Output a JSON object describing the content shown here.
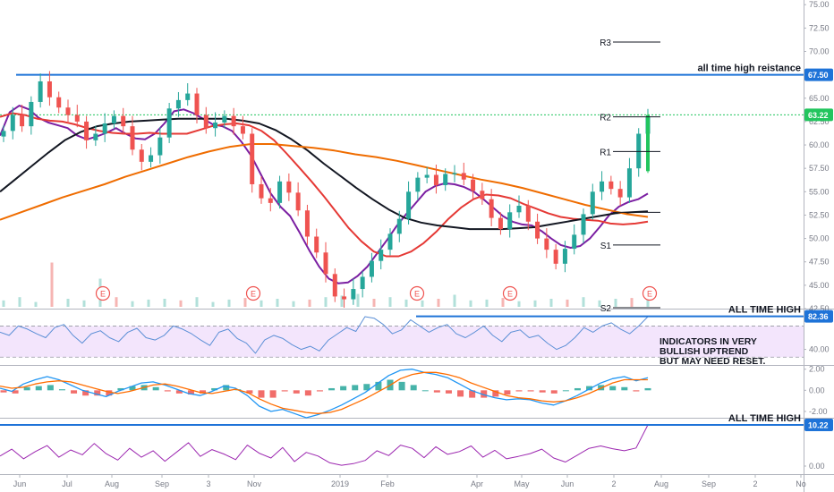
{
  "chart_data": {
    "type": "line",
    "title": "",
    "panes": [
      {
        "name": "price",
        "ylim": [
          42.5,
          75.5
        ],
        "y_ticks": [
          "75.00",
          "72.50",
          "70.00",
          "67.50",
          "65.00",
          "62.50",
          "60.00",
          "57.50",
          "55.00",
          "52.50",
          "50.00",
          "47.50",
          "45.00",
          "42.50"
        ],
        "y_tick_values": [
          75,
          72.5,
          70,
          67.5,
          65,
          62.5,
          60,
          57.5,
          55,
          52.5,
          50,
          47.5,
          45,
          42.5
        ],
        "price_series": [
          61.5,
          63.2,
          62.0,
          64.6,
          66.8,
          65.1,
          64.0,
          63.2,
          62.5,
          60.5,
          61.2,
          62.3,
          63.1,
          62.0,
          59.5,
          58.2,
          58.9,
          60.8,
          63.9,
          64.8,
          65.5,
          63.2,
          61.8,
          62.4,
          63.1,
          62.0,
          61.2,
          55.8,
          54.3,
          53.8,
          56.1,
          54.9,
          53.0,
          50.2,
          48.5,
          46.2,
          43.8,
          43.5,
          44.6,
          45.9,
          47.6,
          48.8,
          50.5,
          52.1,
          55.0,
          56.5,
          56.8,
          55.7,
          56.9,
          57.0,
          56.3,
          55.1,
          54.2,
          52.2,
          51.0,
          52.8,
          53.5,
          51.8,
          50.0,
          48.8,
          47.3,
          48.9,
          50.4,
          52.6,
          55.0,
          56.1,
          55.3,
          54.4,
          57.5,
          61.2,
          63.0
        ],
        "candle_up_color": "#26a69a",
        "candle_down_color": "#ef5350",
        "moving_averages": [
          {
            "color": "#7b1fa2",
            "values": [
              61.0,
              63.5,
              64.2,
              63.8,
              62.9,
              62.4,
              62.1,
              61.8,
              61.0,
              60.6,
              60.9,
              61.3,
              61.8,
              61.2,
              60.7,
              60.6,
              61.2,
              62.3,
              63.6,
              63.8,
              63.4,
              62.8,
              62.2,
              62.0,
              61.5,
              60.3,
              58.8,
              56.8,
              54.8,
              53.4,
              52.4,
              50.6,
              48.7,
              47.0,
              45.7,
              45.2,
              45.3,
              46.0,
              47.0,
              48.4,
              49.8,
              51.3,
              52.6,
              53.8,
              55.0,
              55.6,
              55.9,
              55.8,
              55.5,
              55.0,
              54.2,
              53.3,
              52.4,
              51.8,
              51.5,
              51.4,
              50.8,
              50.0,
              49.3,
              49.0,
              49.2,
              50.0,
              51.2,
              52.5,
              53.4,
              53.9,
              54.2,
              54.8
            ]
          },
          {
            "color": "#e53935",
            "values": [
              63.0,
              63.4,
              63.2,
              62.8,
              62.6,
              62.5,
              62.2,
              61.8,
              61.5,
              61.3,
              61.2,
              61.2,
              61.3,
              61.2,
              61.2,
              61.2,
              61.6,
              62.0,
              62.2,
              62.3,
              62.1,
              61.5,
              60.5,
              59.1,
              57.6,
              56.1,
              54.5,
              52.8,
              51.1,
              49.7,
              48.6,
              48.1,
              48.1,
              48.6,
              49.5,
              50.7,
              52.1,
              53.3,
              54.2,
              54.7,
              54.6,
              54.3,
              53.7,
              53.2,
              52.7,
              52.3,
              52.1,
              52.0,
              51.9,
              51.6,
              51.5,
              51.6,
              51.8
            ]
          },
          {
            "color": "#131722",
            "values": [
              55.0,
              56.4,
              57.8,
              59.2,
              60.5,
              61.4,
              62.0,
              62.3,
              62.5,
              62.6,
              62.7,
              62.8,
              62.8,
              62.8,
              62.8,
              62.6,
              62.3,
              61.6,
              60.6,
              59.4,
              58.0,
              56.7,
              55.4,
              54.2,
              53.1,
              52.2,
              51.7,
              51.4,
              51.2,
              51.0,
              51.0,
              51.0,
              51.1,
              51.2,
              51.5,
              51.8,
              52.1,
              52.4,
              52.7,
              52.8,
              52.9
            ]
          },
          {
            "color": "#ef6c00",
            "values": [
              52.0,
              52.8,
              53.6,
              54.4,
              55.1,
              55.8,
              56.6,
              57.3,
              58.0,
              58.7,
              59.3,
              59.8,
              60.1,
              60.1,
              59.9,
              59.7,
              59.4,
              59.0,
              58.7,
              58.3,
              57.8,
              57.3,
              56.8,
              56.3,
              55.9,
              55.4,
              54.8,
              54.2,
              53.6,
              53.1,
              52.6,
              52.3
            ]
          }
        ],
        "volume_ratio_series": [
          0.08,
          0.12,
          0.06,
          0.55,
          0.1,
          0.08,
          0.35,
          0.12,
          0.07,
          0.09,
          0.1,
          0.08,
          0.12,
          0.06,
          0.09,
          0.11,
          0.08,
          0.1,
          0.07,
          0.09,
          0.12,
          0.14,
          0.16,
          0.1,
          0.12,
          0.09,
          0.08,
          0.1,
          0.15,
          0.08,
          0.09,
          0.11,
          0.07,
          0.08,
          0.1,
          0.09,
          0.12,
          0.08,
          0.1,
          0.11,
          0.09
        ],
        "horizontal_lines": [
          {
            "value": 67.5,
            "color": "#1e73d8",
            "label": "all time high reistance"
          },
          {
            "value": 63.22,
            "color": "#22c55e",
            "style": "dotted"
          }
        ],
        "price_tags": [
          {
            "value": 67.5,
            "text": "67.50",
            "bg": "#1e73d8",
            "fg": "#ffffff"
          },
          {
            "value": 63.22,
            "text": "63.22",
            "bg": "#22c55e",
            "fg": "#ffffff"
          }
        ],
        "pivots": [
          {
            "label": "R3",
            "value": 71.0
          },
          {
            "label": "R2",
            "value": 63.0
          },
          {
            "label": "R1",
            "value": 59.3
          },
          {
            "label": "",
            "value": 52.8
          },
          {
            "label": "S1",
            "value": 49.3
          },
          {
            "label": "S2",
            "value": 42.6
          }
        ],
        "earnings_markers": [
          "E",
          "E",
          "E",
          "E",
          "E"
        ],
        "last_candle": {
          "open": 57.2,
          "high": 63.4,
          "low": 57.0,
          "close": 63.2
        }
      },
      {
        "name": "rsi",
        "ylim": [
          20,
          90
        ],
        "y_ticks": [
          "40.00"
        ],
        "y_tick_values": [
          40
        ],
        "overbought": 70,
        "oversold": 30,
        "band_color": "#f3e5fc",
        "line_color": "#5b8fd6",
        "series": [
          62,
          58,
          70,
          66,
          60,
          55,
          68,
          72,
          58,
          48,
          60,
          64,
          55,
          50,
          62,
          67,
          55,
          52,
          58,
          70,
          66,
          60,
          52,
          45,
          62,
          66,
          54,
          48,
          35,
          52,
          58,
          54,
          46,
          40,
          44,
          38,
          52,
          60,
          68,
          63,
          82,
          80,
          72,
          60,
          65,
          78,
          70,
          62,
          68,
          72,
          60,
          55,
          62,
          70,
          58,
          50,
          62,
          65,
          55,
          58,
          48,
          40,
          45,
          55,
          68,
          62,
          70,
          74,
          66,
          60,
          70,
          82
        ],
        "horizontal_line": {
          "value": 82.36,
          "color": "#1e73d8",
          "label": "ALL TIME HIGH"
        },
        "price_tag": {
          "value": 82.36,
          "text": "82.36",
          "bg": "#1e73d8",
          "fg": "#ffffff"
        },
        "annotation": [
          "INDICATORS IN VERY",
          "BULLISH UPTREND",
          "BUT MAY NEED RESET."
        ]
      },
      {
        "name": "macd",
        "ylim": [
          -2.6,
          2.4
        ],
        "y_ticks": [
          "2.00",
          "0.00",
          "-2.00"
        ],
        "y_tick_values": [
          2,
          0,
          -2
        ],
        "macd_line_color": "#2196f3",
        "signal_line_color": "#ff6d00",
        "hist_up_color": "#26a69a",
        "hist_down_color": "#ef5350",
        "macd": [
          0.2,
          -0.1,
          0.6,
          1.0,
          1.3,
          1.0,
          0.5,
          0.0,
          -0.3,
          -0.6,
          -0.1,
          0.3,
          0.7,
          0.8,
          0.5,
          0.1,
          -0.3,
          -0.5,
          -0.1,
          0.4,
          0.2,
          -0.5,
          -1.5,
          -2.0,
          -1.8,
          -2.2,
          -2.6,
          -2.3,
          -1.9,
          -1.4,
          -0.8,
          -0.2,
          0.6,
          1.4,
          1.9,
          2.0,
          1.7,
          1.5,
          1.2,
          0.6,
          0.0,
          -0.4,
          -0.7,
          -0.9,
          -0.8,
          -0.9,
          -1.2,
          -1.4,
          -1.0,
          -0.5,
          0.1,
          0.7,
          1.1,
          1.3,
          0.9,
          1.2
        ],
        "signal": [
          0.4,
          0.2,
          0.3,
          0.6,
          0.8,
          0.9,
          0.8,
          0.5,
          0.2,
          -0.1,
          -0.3,
          -0.1,
          0.2,
          0.5,
          0.6,
          0.4,
          0.1,
          -0.2,
          -0.3,
          -0.1,
          0.1,
          -0.2,
          -0.8,
          -1.3,
          -1.7,
          -1.9,
          -2.1,
          -2.2,
          -2.1,
          -1.8,
          -1.3,
          -0.8,
          -0.2,
          0.4,
          1.1,
          1.5,
          1.7,
          1.7,
          1.5,
          1.2,
          0.7,
          0.3,
          -0.1,
          -0.5,
          -0.7,
          -0.8,
          -1.0,
          -1.1,
          -1.0,
          -0.7,
          -0.3,
          0.2,
          0.7,
          1.0,
          1.0,
          1.0
        ],
        "histogram": [
          -0.2,
          -0.3,
          0.3,
          0.4,
          0.5,
          0.1,
          -0.3,
          -0.5,
          -0.5,
          -0.5,
          0.2,
          0.4,
          0.5,
          0.3,
          -0.1,
          -0.3,
          -0.4,
          -0.3,
          0.2,
          0.5,
          0.1,
          -0.3,
          -0.7,
          -0.7,
          -0.1,
          -0.3,
          -0.5,
          -0.1,
          0.2,
          0.4,
          0.5,
          0.6,
          0.8,
          1.0,
          0.8,
          0.5,
          0.0,
          -0.2,
          -0.3,
          -0.6,
          -0.7,
          -0.7,
          -0.6,
          -0.4,
          -0.1,
          -0.1,
          -0.2,
          -0.3,
          0.0,
          0.2,
          0.4,
          0.5,
          0.4,
          0.3,
          -0.1,
          0.2
        ]
      },
      {
        "name": "oscillator",
        "ylim": [
          -2.0,
          12.0
        ],
        "y_ticks": [
          "0.00"
        ],
        "y_tick_values": [
          0
        ],
        "line_color": "#9c27b0",
        "series": [
          2.5,
          4.2,
          1.8,
          3.6,
          5.1,
          2.2,
          4.0,
          2.8,
          5.6,
          3.1,
          1.5,
          4.4,
          2.2,
          3.8,
          1.2,
          3.5,
          5.8,
          2.4,
          4.1,
          3.0,
          1.6,
          5.2,
          3.2,
          2.0,
          4.6,
          1.1,
          3.4,
          2.5,
          0.8,
          0.2,
          0.6,
          1.4,
          3.8,
          2.6,
          5.2,
          4.4,
          2.1,
          4.8,
          2.9,
          3.6,
          5.0,
          2.2,
          3.9,
          1.8,
          2.4,
          3.1,
          4.2,
          2.0,
          1.0,
          2.7,
          4.4,
          5.0,
          4.3,
          3.8,
          4.5,
          10.22
        ],
        "horizontal_line": {
          "value": 10.22,
          "color": "#1e73d8",
          "label": "ALL TIME HIGH"
        },
        "price_tag": {
          "value": 10.22,
          "text": "10.22",
          "bg": "#1e73d8",
          "fg": "#ffffff"
        }
      }
    ],
    "x_ticks": [
      "Jun",
      "Jul",
      "Aug",
      "Sep",
      "3",
      "Nov",
      "2019",
      "Feb",
      "Apr",
      "May",
      "Jun",
      "2",
      "Aug",
      "Sep",
      "2",
      "No"
    ],
    "grid": false
  }
}
